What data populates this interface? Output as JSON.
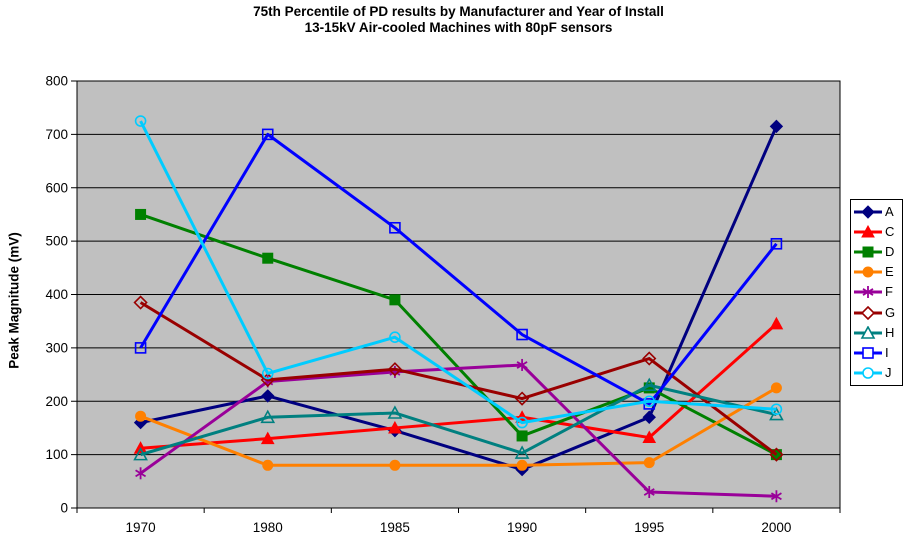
{
  "title": {
    "line1": "75th Percentile of PD results by Manufacturer and Year of Install",
    "line2": "13-15kV Air-cooled Machines with 80pF sensors"
  },
  "y_axis_title": "Peak Magnitude (mV)",
  "chart_data": {
    "type": "line",
    "title": "75th Percentile of PD results by Manufacturer and Year of Install",
    "subtitle": "13-15kV Air-cooled Machines with 80pF sensors",
    "xlabel": "",
    "ylabel": "Peak Magnitude (mV)",
    "categories": [
      "1970",
      "1980",
      "1985",
      "1990",
      "1995",
      "2000"
    ],
    "ylim": [
      0,
      800
    ],
    "ytick_step": 100,
    "grid": "horizontal-black-on-gray",
    "plot_bg": "#C0C0C0",
    "legend_position": "right",
    "series": [
      {
        "name": "A",
        "color": "#000080",
        "marker": "diamond",
        "fill": "filled",
        "values": [
          160,
          210,
          145,
          72,
          170,
          715
        ]
      },
      {
        "name": "C",
        "color": "#FF0000",
        "marker": "triangle",
        "fill": "filled",
        "values": [
          112,
          130,
          150,
          170,
          132,
          345
        ]
      },
      {
        "name": "D",
        "color": "#008000",
        "marker": "square",
        "fill": "filled",
        "values": [
          550,
          468,
          390,
          135,
          225,
          100
        ]
      },
      {
        "name": "E",
        "color": "#FF8000",
        "marker": "circle",
        "fill": "filled",
        "values": [
          172,
          80,
          80,
          80,
          85,
          225
        ]
      },
      {
        "name": "F",
        "color": "#990099",
        "marker": "asterisk",
        "fill": "line",
        "values": [
          65,
          237,
          255,
          268,
          30,
          22
        ]
      },
      {
        "name": "G",
        "color": "#990000",
        "marker": "diamond",
        "fill": "open",
        "values": [
          385,
          240,
          260,
          205,
          280,
          100
        ]
      },
      {
        "name": "H",
        "color": "#008080",
        "marker": "triangle",
        "fill": "open",
        "values": [
          100,
          170,
          178,
          103,
          230,
          175
        ]
      },
      {
        "name": "I",
        "color": "#0000FF",
        "marker": "square",
        "fill": "open",
        "values": [
          300,
          700,
          525,
          325,
          195,
          495
        ]
      },
      {
        "name": "J",
        "color": "#00CCFF",
        "marker": "circle",
        "fill": "open",
        "values": [
          725,
          252,
          320,
          160,
          200,
          185
        ]
      }
    ]
  }
}
